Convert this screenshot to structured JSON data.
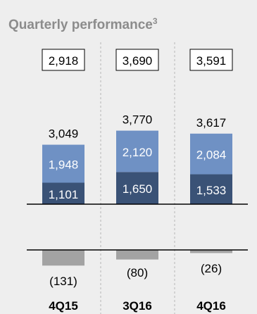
{
  "chart_data": {
    "type": "bar",
    "title": "Quarterly performance",
    "title_footnote": "3",
    "categories": [
      "4Q15",
      "3Q16",
      "4Q16"
    ],
    "series": [
      {
        "values": [
          1101,
          1650,
          1533
        ]
      },
      {
        "values": [
          1948,
          2120,
          2084
        ]
      }
    ],
    "segment_labels": [
      [
        "1,101",
        "1,650",
        "1,533"
      ],
      [
        "1,948",
        "2,120",
        "2,084"
      ]
    ],
    "totals": [
      3049,
      3770,
      3617
    ],
    "total_labels": [
      "3,049",
      "3,770",
      "3,617"
    ],
    "boxed_values": [
      "2,918",
      "3,690",
      "3,591"
    ],
    "negative_values": [
      -131,
      -80,
      -26
    ],
    "negative_labels": [
      "(131)",
      "(80)",
      "(26)"
    ],
    "colors": {
      "segment_dark": "#3a5276",
      "segment_light": "#6f91c4",
      "negative": "#a3a3a3",
      "background": "#eeeeee",
      "title": "#8c8c8c"
    },
    "grid": false,
    "legend": "none"
  }
}
